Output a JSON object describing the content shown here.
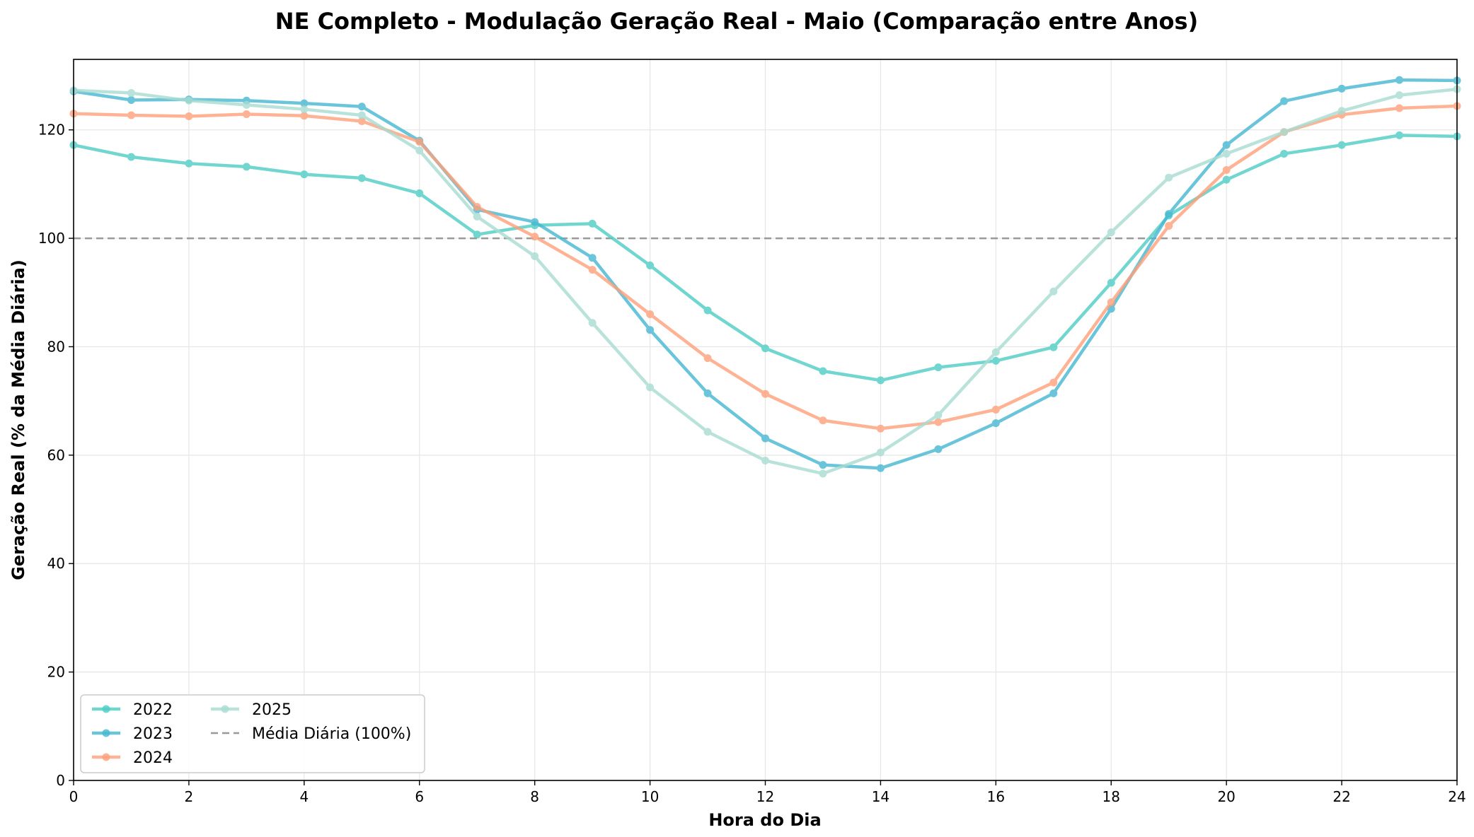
{
  "chart_data": {
    "type": "line",
    "title": "NE Completo - Modulação Geração Real - Maio (Comparação entre Anos)",
    "xlabel": "Hora do Dia",
    "ylabel": "Geração Real (% da Média Diária)",
    "xlim": [
      0,
      24
    ],
    "ylim": [
      0,
      133
    ],
    "xticks": [
      "0",
      "2",
      "4",
      "6",
      "8",
      "10",
      "12",
      "14",
      "16",
      "18",
      "20",
      "22",
      "24"
    ],
    "yticks": [
      "0",
      "20",
      "40",
      "60",
      "80",
      "100",
      "120"
    ],
    "grid": true,
    "legend_position": "lower-left",
    "x": [
      0,
      1,
      2,
      3,
      4,
      5,
      6,
      7,
      8,
      9,
      10,
      11,
      12,
      13,
      14,
      15,
      16,
      17,
      18,
      19,
      20,
      21,
      22,
      23,
      24
    ],
    "series": [
      {
        "name": "2022",
        "color": "#4ecdc4",
        "values": [
          117.2,
          115.0,
          113.8,
          113.2,
          111.8,
          111.1,
          108.3,
          100.7,
          102.4,
          102.7,
          95.0,
          86.7,
          79.7,
          75.5,
          73.8,
          76.2,
          77.4,
          79.9,
          91.8,
          104.2,
          110.8,
          115.6,
          117.2,
          119.0,
          118.8
        ]
      },
      {
        "name": "2023",
        "color": "#45b7d1",
        "values": [
          127.1,
          125.5,
          125.6,
          125.4,
          124.9,
          124.3,
          118.0,
          105.3,
          103.0,
          96.4,
          83.1,
          71.4,
          63.1,
          58.2,
          57.6,
          61.1,
          65.9,
          71.4,
          87.0,
          104.5,
          117.2,
          125.3,
          127.6,
          129.2,
          129.1
        ]
      },
      {
        "name": "2024",
        "color": "#ffa07a",
        "values": [
          123.0,
          122.7,
          122.5,
          122.9,
          122.6,
          121.6,
          117.8,
          105.8,
          100.3,
          94.2,
          86.0,
          77.9,
          71.3,
          66.4,
          64.9,
          66.1,
          68.4,
          73.4,
          88.2,
          102.3,
          112.6,
          119.6,
          122.8,
          124.0,
          124.4
        ]
      },
      {
        "name": "2025",
        "color": "#a8dcd1",
        "values": [
          127.3,
          126.8,
          125.4,
          124.6,
          123.8,
          122.7,
          116.2,
          104.0,
          96.7,
          84.4,
          72.5,
          64.3,
          59.0,
          56.6,
          60.5,
          67.4,
          79.0,
          90.2,
          101.1,
          111.2,
          115.6,
          119.6,
          123.5,
          126.4,
          127.5
        ]
      }
    ],
    "reference_line": {
      "label": "Média Diária (100%)",
      "y": 100,
      "color": "#999999",
      "style": "dashed"
    }
  }
}
